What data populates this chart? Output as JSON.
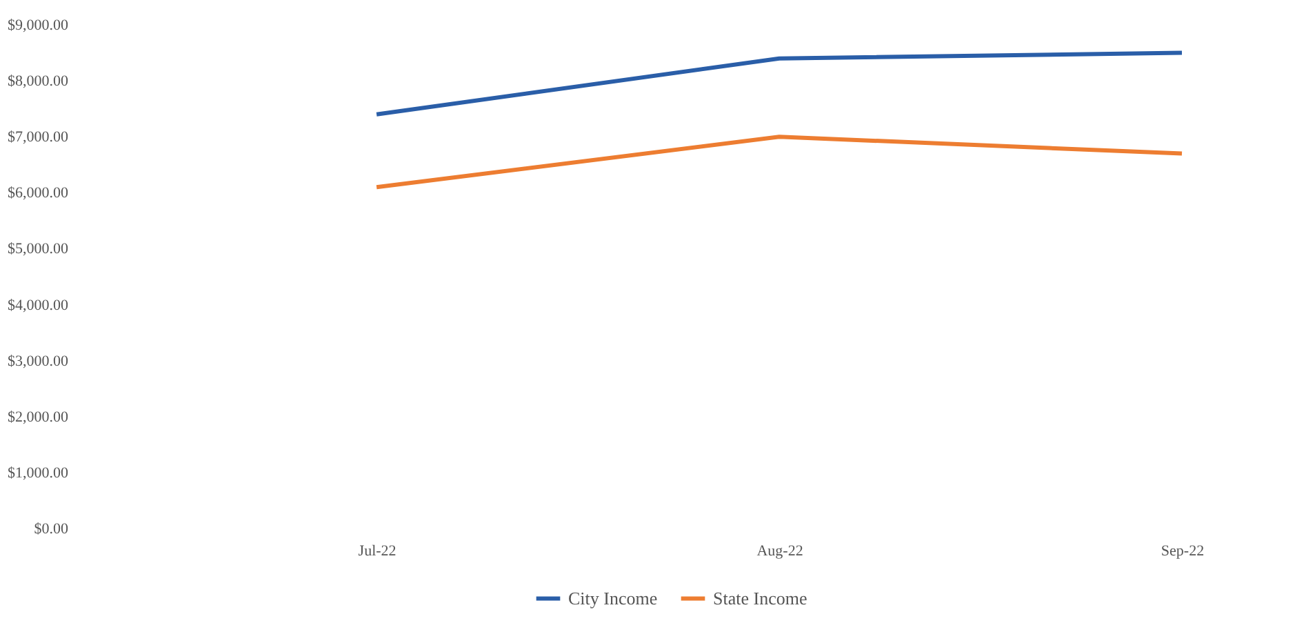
{
  "chart_data": {
    "type": "line",
    "categories": [
      "Jul-22",
      "Aug-22",
      "Sep-22"
    ],
    "series": [
      {
        "name": "City Income",
        "color": "#2a5ea8",
        "values": [
          7400,
          8400,
          8500
        ]
      },
      {
        "name": "State Income",
        "color": "#ed7d31",
        "values": [
          6100,
          7000,
          6700
        ]
      }
    ],
    "ylim": [
      0,
      9000
    ],
    "yticks": [
      {
        "value": 0,
        "label": "$0.00"
      },
      {
        "value": 1000,
        "label": "$1,000.00"
      },
      {
        "value": 2000,
        "label": "$2,000.00"
      },
      {
        "value": 3000,
        "label": "$3,000.00"
      },
      {
        "value": 4000,
        "label": "$4,000.00"
      },
      {
        "value": 5000,
        "label": "$5,000.00"
      },
      {
        "value": 6000,
        "label": "$6,000.00"
      },
      {
        "value": 7000,
        "label": "$7,000.00"
      },
      {
        "value": 8000,
        "label": "$8,000.00"
      },
      {
        "value": 9000,
        "label": "$9,000.00"
      }
    ],
    "grid": false,
    "legend": "bottom",
    "marker": "none",
    "line_style": "solid"
  }
}
